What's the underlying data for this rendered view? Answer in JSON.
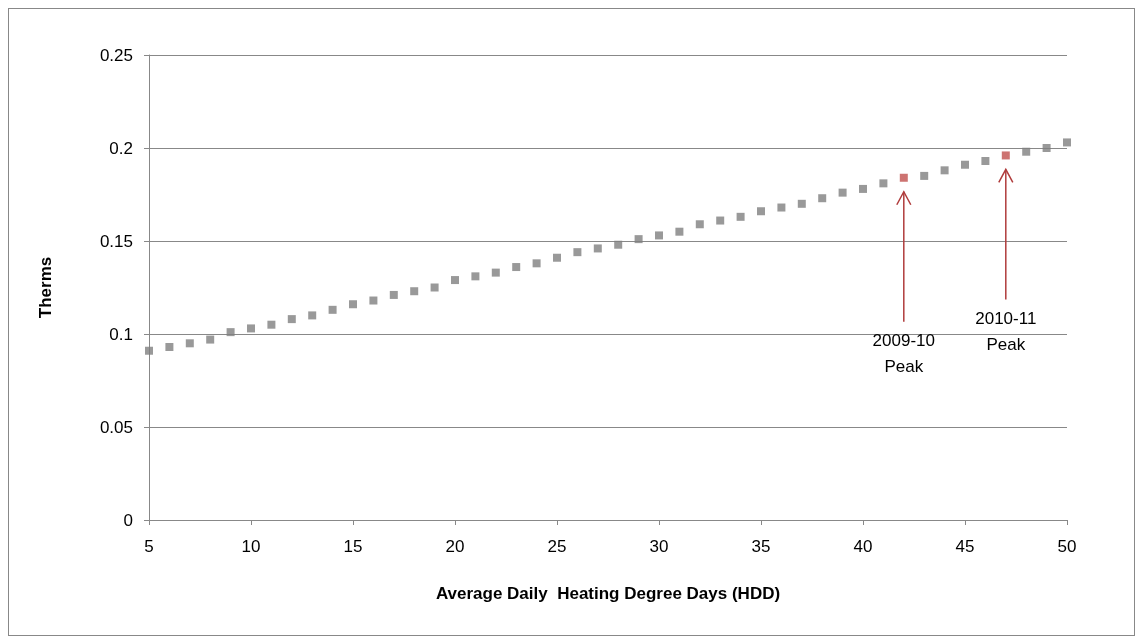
{
  "chart_data": {
    "type": "scatter",
    "xlabel": "Average Daily  Heating Degree Days (HDD)",
    "ylabel": "Therms",
    "series": [
      {
        "color": "#808080",
        "x": [
          5,
          6,
          7,
          8,
          9,
          10,
          11,
          12,
          13,
          14,
          15,
          16,
          17,
          18,
          19,
          20,
          21,
          22,
          23,
          24,
          25,
          26,
          27,
          28,
          29,
          30,
          31,
          32,
          33,
          34,
          35,
          36,
          37,
          38,
          39,
          40,
          41,
          43,
          44,
          45,
          46,
          48,
          49,
          50
        ],
        "values": [
          0.091,
          0.093,
          0.095,
          0.097,
          0.101,
          0.103,
          0.105,
          0.108,
          0.11,
          0.113,
          0.116,
          0.118,
          0.121,
          0.123,
          0.125,
          0.129,
          0.131,
          0.133,
          0.136,
          0.138,
          0.141,
          0.144,
          0.146,
          0.148,
          0.151,
          0.153,
          0.155,
          0.159,
          0.161,
          0.163,
          0.166,
          0.168,
          0.17,
          0.173,
          0.176,
          0.178,
          0.181,
          0.185,
          0.188,
          0.191,
          0.193,
          0.198,
          0.2,
          0.203
        ]
      },
      {
        "color": "#c0504d",
        "x": [
          42,
          47
        ],
        "values": [
          0.184,
          0.196
        ]
      }
    ],
    "xlim": [
      5,
      50
    ],
    "xticks": [
      5,
      10,
      15,
      20,
      25,
      30,
      35,
      40,
      45,
      50
    ],
    "ylim": [
      0,
      0.25
    ],
    "yticks": [
      0,
      0.05,
      0.1,
      0.15,
      0.2,
      0.25
    ],
    "grid": "y",
    "marker": "square",
    "annotations": [
      "2009-10\nPeak",
      "2010-11\nPeak"
    ]
  }
}
